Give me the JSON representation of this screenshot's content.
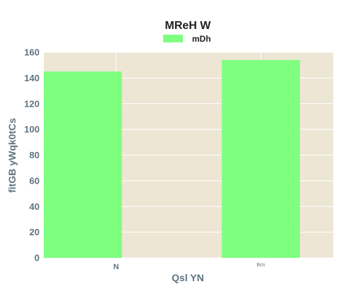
{
  "chart_data": {
    "type": "bar",
    "title": "MReH W",
    "xlabel": "Qsl YN",
    "ylabel": "fitGB yWqk0tCs",
    "categories": [
      "N",
      "Bcn"
    ],
    "series": [
      {
        "name": "mDh",
        "values": [
          145,
          154
        ]
      }
    ],
    "ylim": [
      0,
      160
    ],
    "yticks": [
      0,
      20,
      40,
      60,
      80,
      100,
      120,
      140,
      160
    ],
    "grid": true,
    "legend_position": "top-center",
    "colors": {
      "bar": "#7fff7f",
      "plot_background": "#ede6d5",
      "grid": "#ffffff",
      "tick_text": "#5f7380",
      "title_text": "#222222"
    }
  }
}
